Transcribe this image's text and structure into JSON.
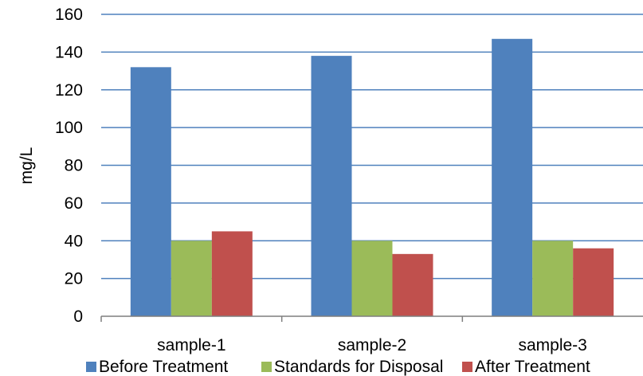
{
  "chart_data": {
    "type": "bar",
    "title": "",
    "xlabel": "",
    "ylabel": "mg/L",
    "ylim": [
      0,
      160
    ],
    "yticks": [
      0,
      20,
      40,
      60,
      80,
      100,
      120,
      140,
      160
    ],
    "grid": true,
    "legend_position": "bottom",
    "categories": [
      "sample-1",
      "sample-2",
      "sample-3"
    ],
    "series": [
      {
        "name": "Before Treatment",
        "color": "#4F81BD",
        "values": [
          132,
          138,
          147
        ]
      },
      {
        "name": "Standards for Disposal",
        "color": "#9BBB59",
        "values": [
          40,
          40,
          40
        ]
      },
      {
        "name": "After Treatment",
        "color": "#C0504D",
        "values": [
          45,
          33,
          36
        ]
      }
    ]
  },
  "colors": {
    "gridline": "#4F81BD",
    "axis": "#7F7F7F"
  }
}
